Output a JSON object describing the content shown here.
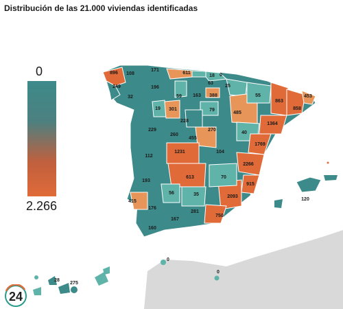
{
  "title": "Distribución de las 21.000 viviendas identificadas",
  "legend": {
    "min_label": "0",
    "max_label": "2.266",
    "color_low": "#3d8a8a",
    "color_high": "#e06a38"
  },
  "colors": {
    "teal": "#3d8a8a",
    "light_teal": "#5fb3a8",
    "orange": "#e06a38",
    "light_orange": "#e8955a",
    "land": "#d9d9d9",
    "sea": "#ffffff"
  },
  "logo": {
    "text": "24"
  },
  "map_data": {
    "provinces": [
      {
        "value": "896",
        "tone": "orange"
      },
      {
        "value": "108",
        "tone": "teal"
      },
      {
        "value": "171",
        "tone": "teal"
      },
      {
        "value": "249",
        "tone": "teal"
      },
      {
        "value": "196",
        "tone": "teal"
      },
      {
        "value": "32",
        "tone": "teal"
      },
      {
        "value": "611",
        "tone": "light_orange"
      },
      {
        "value": "18",
        "tone": "light_teal"
      },
      {
        "value": "0",
        "tone": "light_teal"
      },
      {
        "value": "63",
        "tone": "light_teal"
      },
      {
        "value": "25",
        "tone": "light_teal"
      },
      {
        "value": "388",
        "tone": "light_orange"
      },
      {
        "value": "163",
        "tone": "teal"
      },
      {
        "value": "59",
        "tone": "light_teal"
      },
      {
        "value": "55",
        "tone": "light_teal"
      },
      {
        "value": "19",
        "tone": "light_teal"
      },
      {
        "value": "301",
        "tone": "light_orange"
      },
      {
        "value": "79",
        "tone": "light_teal"
      },
      {
        "value": "485",
        "tone": "light_orange"
      },
      {
        "value": "863",
        "tone": "orange"
      },
      {
        "value": "858",
        "tone": "orange"
      },
      {
        "value": "453",
        "tone": "light_orange"
      },
      {
        "value": "228",
        "tone": "teal"
      },
      {
        "value": "229",
        "tone": "teal"
      },
      {
        "value": "260",
        "tone": "teal"
      },
      {
        "value": "270",
        "tone": "teal"
      },
      {
        "value": "40",
        "tone": "light_teal"
      },
      {
        "value": "1364",
        "tone": "orange"
      },
      {
        "value": "455",
        "tone": "light_orange"
      },
      {
        "value": "104",
        "tone": "teal"
      },
      {
        "value": "1769",
        "tone": "orange"
      },
      {
        "value": "112",
        "tone": "teal"
      },
      {
        "value": "1231",
        "tone": "orange"
      },
      {
        "value": "2266",
        "tone": "orange"
      },
      {
        "value": "193",
        "tone": "teal"
      },
      {
        "value": "613",
        "tone": "orange"
      },
      {
        "value": "70",
        "tone": "light_teal"
      },
      {
        "value": "915",
        "tone": "orange"
      },
      {
        "value": "120",
        "tone": "teal"
      },
      {
        "value": "56",
        "tone": "light_teal"
      },
      {
        "value": "2093",
        "tone": "orange"
      },
      {
        "value": "415",
        "tone": "light_orange"
      },
      {
        "value": "35",
        "tone": "light_teal"
      },
      {
        "value": "176",
        "tone": "teal"
      },
      {
        "value": "281",
        "tone": "teal"
      },
      {
        "value": "750",
        "tone": "orange"
      },
      {
        "value": "167",
        "tone": "teal"
      },
      {
        "value": "160",
        "tone": "teal"
      },
      {
        "value": "28",
        "tone": "teal"
      },
      {
        "value": "275",
        "tone": "teal"
      },
      {
        "value": "0",
        "tone": "light_teal"
      },
      {
        "value": "0",
        "tone": "light_teal"
      }
    ]
  }
}
